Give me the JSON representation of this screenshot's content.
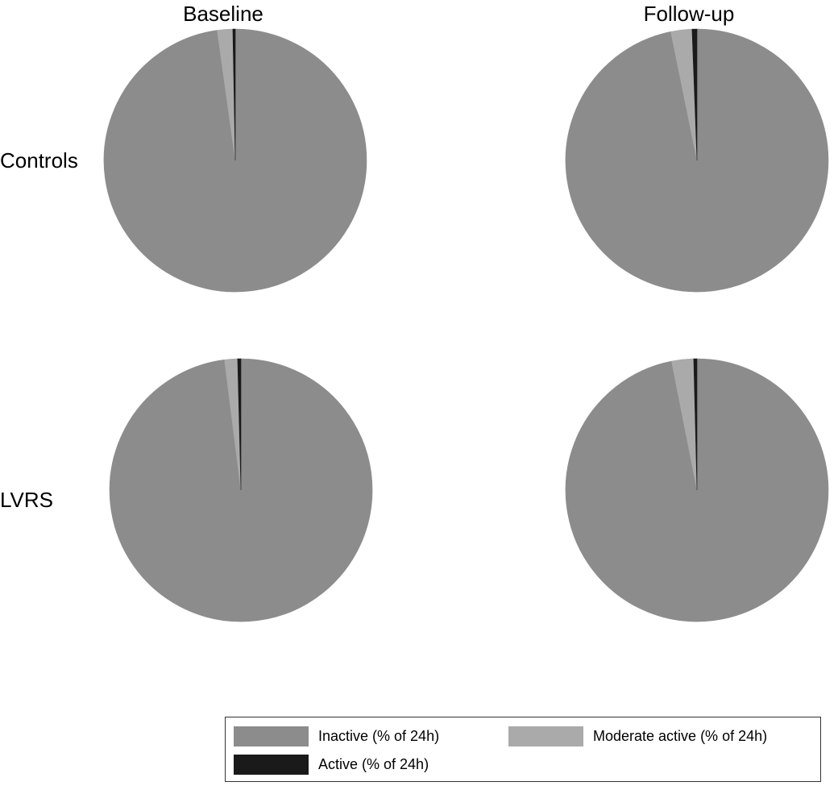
{
  "chart_data": {
    "type": "pie",
    "column_titles": [
      "Baseline",
      "Follow-up"
    ],
    "row_labels": [
      "Controls",
      "LVRS"
    ],
    "categories": [
      "Inactive (% of 24h)",
      "Moderate active (% of 24h)",
      "Active (% of 24h)"
    ],
    "colors": {
      "inactive": "#8c8c8c",
      "moderate": "#aaaaaa",
      "active": "#1a1a1a"
    },
    "pies": [
      {
        "group": "Controls",
        "timepoint": "Baseline",
        "values": [
          97.8,
          1.9,
          0.3
        ]
      },
      {
        "group": "Controls",
        "timepoint": "Follow-up",
        "values": [
          96.8,
          2.6,
          0.6
        ]
      },
      {
        "group": "LVRS",
        "timepoint": "Baseline",
        "values": [
          98.0,
          1.6,
          0.4
        ]
      },
      {
        "group": "LVRS",
        "timepoint": "Follow-up",
        "values": [
          96.9,
          2.7,
          0.4
        ]
      }
    ],
    "legend": {
      "position": "bottom-right",
      "entries": [
        {
          "label": "Inactive (% of 24h)",
          "color": "#8c8c8c"
        },
        {
          "label": "Moderate active (% of 24h)",
          "color": "#aaaaaa"
        },
        {
          "label": "Active (% of 24h)",
          "color": "#1a1a1a"
        }
      ]
    }
  }
}
